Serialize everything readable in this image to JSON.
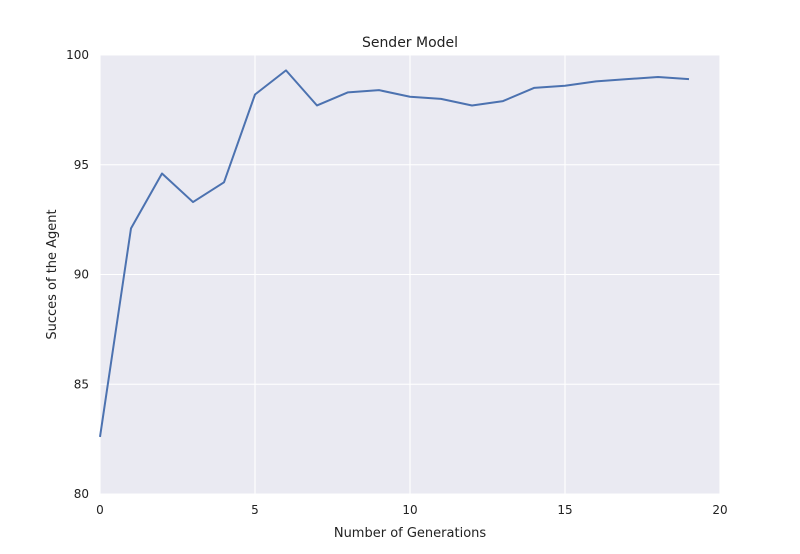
{
  "chart_data": {
    "type": "line",
    "title": "Sender Model",
    "xlabel": "Number of Generations",
    "ylabel": "Succes of the Agent",
    "xlim": [
      0,
      20
    ],
    "ylim": [
      80,
      100
    ],
    "xticks": [
      "0",
      "5",
      "10",
      "15",
      "20"
    ],
    "yticks": [
      "80",
      "85",
      "90",
      "95",
      "100"
    ],
    "grid": true,
    "colors": {
      "background": "#eaeaf2",
      "grid": "#ffffff",
      "line": "#4c72b0"
    },
    "series": [
      {
        "x": [
          0,
          1,
          2,
          3,
          4,
          5,
          6,
          7,
          8,
          9,
          10,
          11,
          12,
          13,
          14,
          15,
          16,
          17,
          18,
          19
        ],
        "values": [
          82.6,
          92.1,
          94.6,
          93.3,
          94.2,
          98.2,
          99.3,
          97.7,
          98.3,
          98.4,
          98.1,
          98.0,
          97.7,
          97.9,
          98.5,
          98.6,
          98.8,
          98.9,
          99.0,
          98.9
        ]
      }
    ]
  }
}
